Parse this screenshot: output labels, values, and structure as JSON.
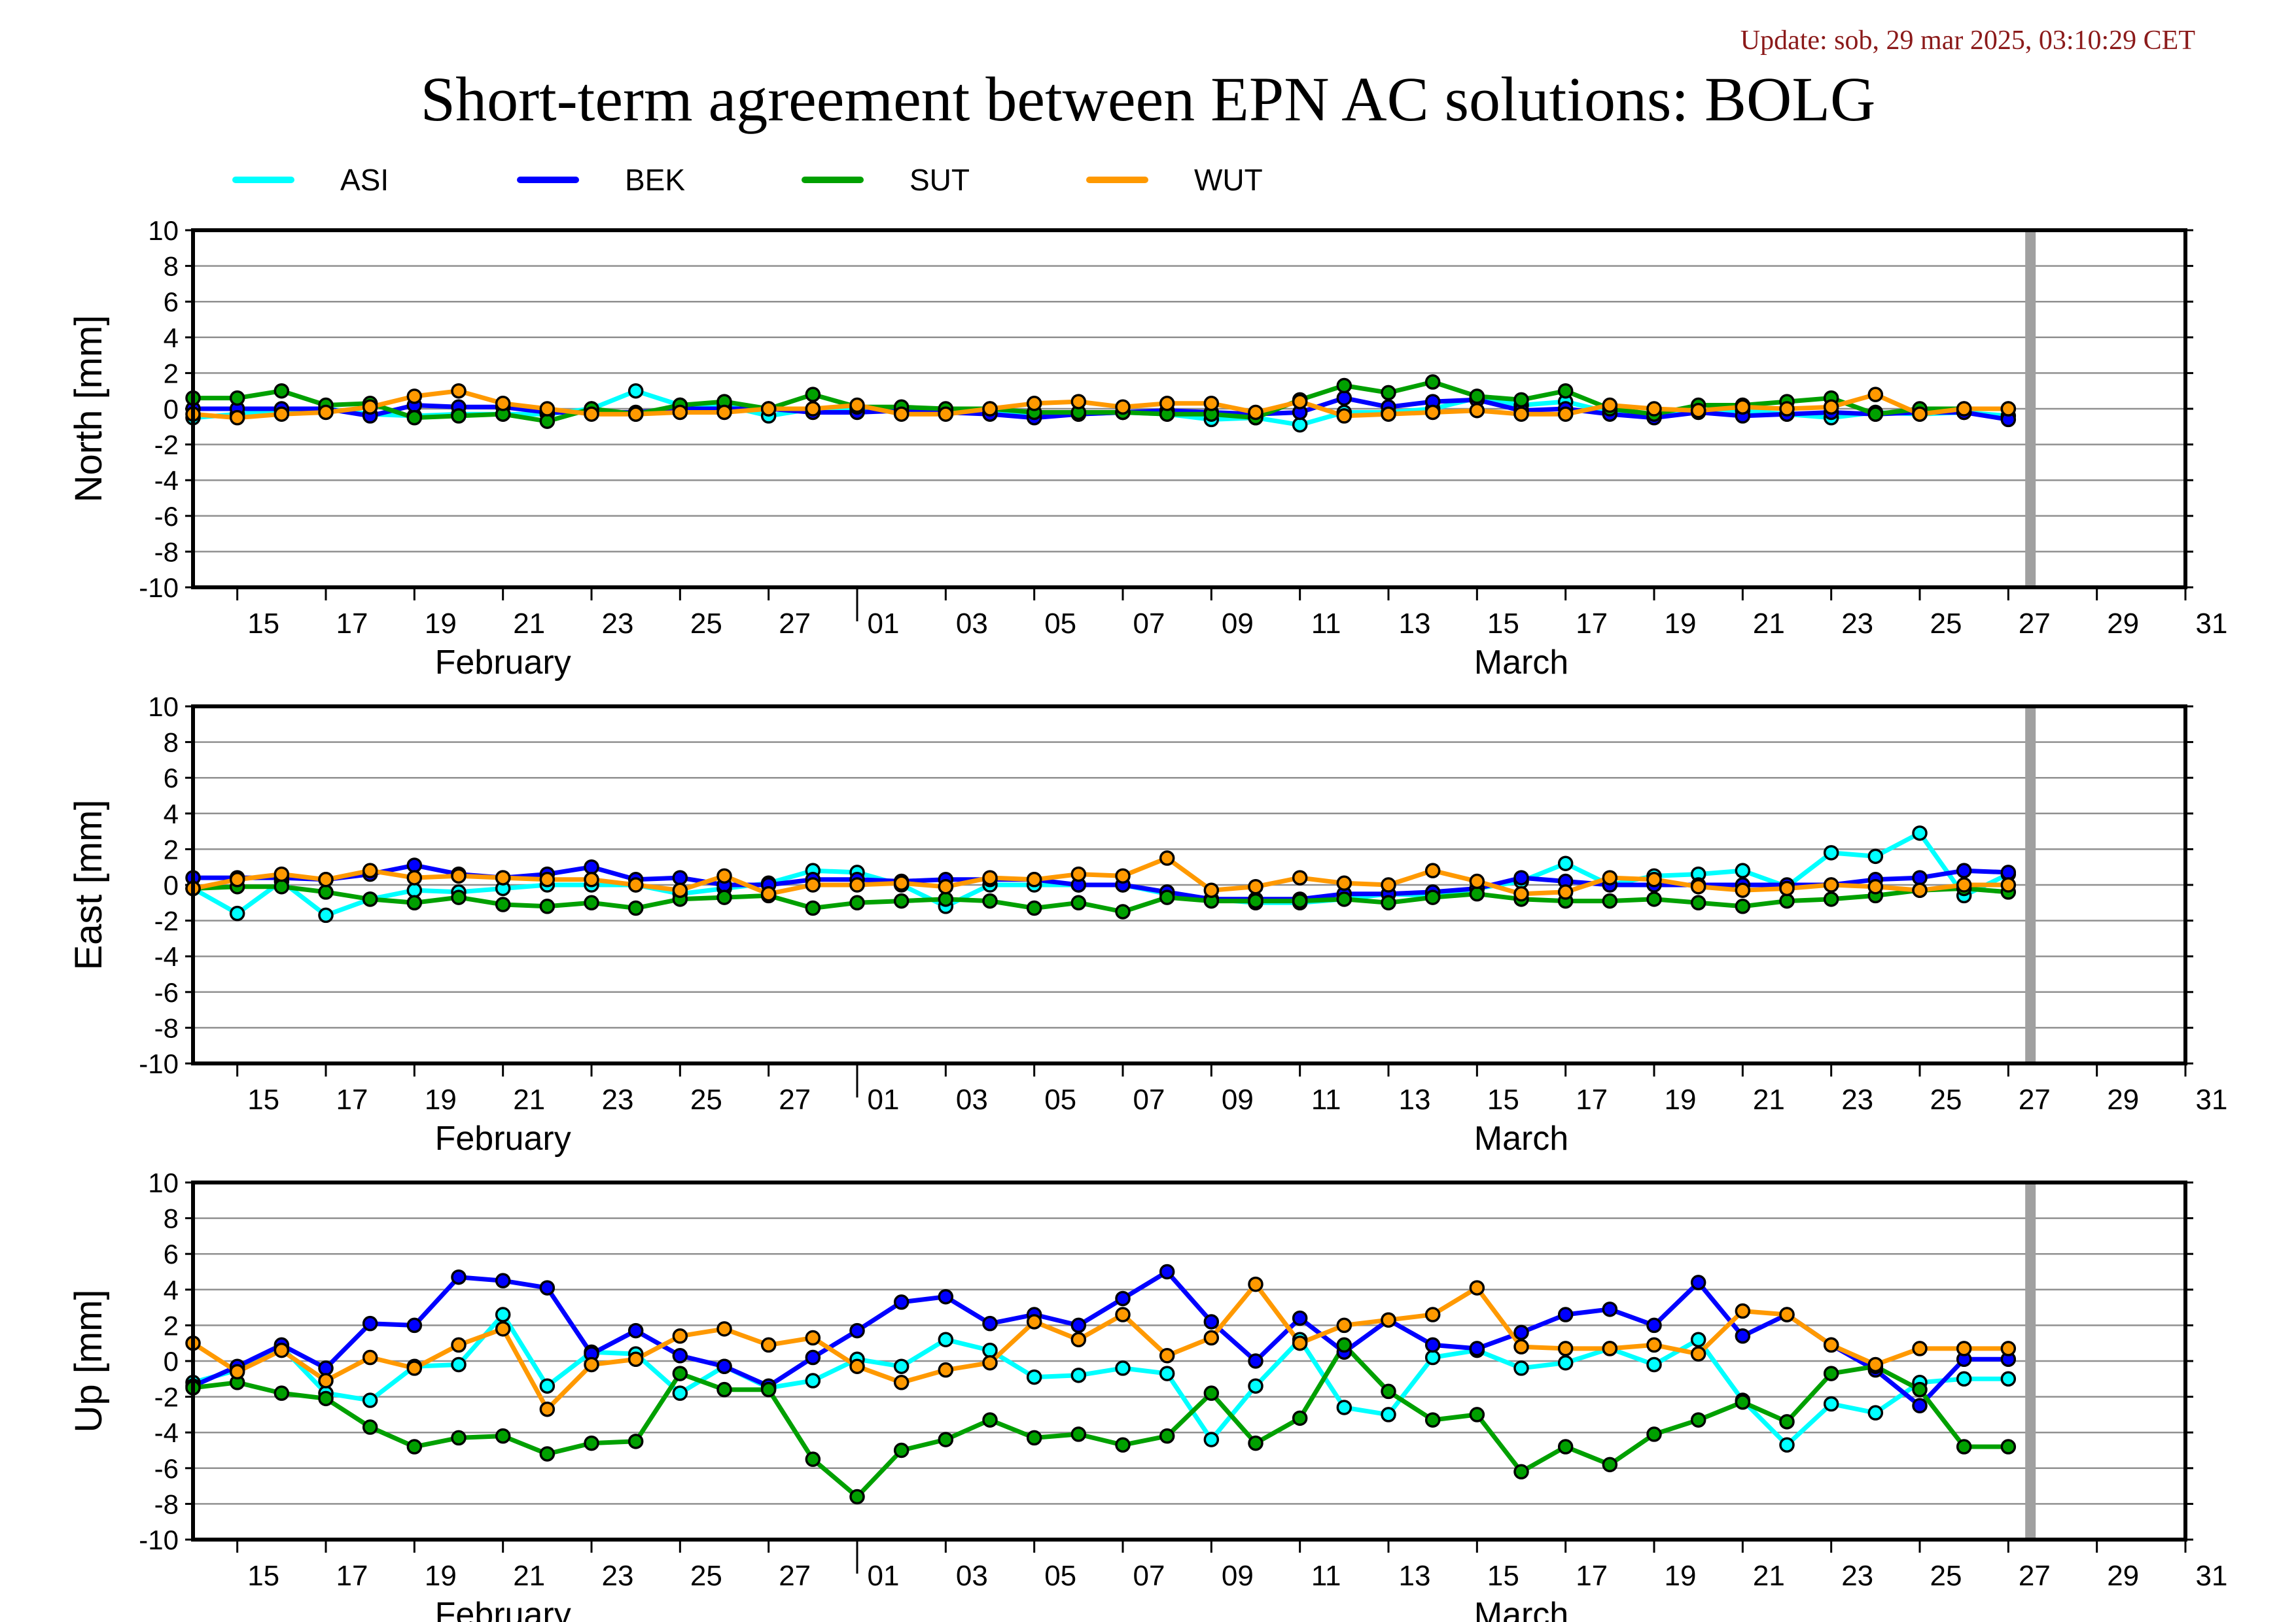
{
  "update_text": "Update: sob, 29 mar 2025, 03:10:29 CET",
  "title": "Short-term agreement between EPN AC solutions: BOLG",
  "colors": {
    "ASI": "#00ffff",
    "BEK": "#0000ff",
    "SUT": "#00a000",
    "WUT": "#ff9900",
    "data_end_marker": "#a0a0a0"
  },
  "legend": [
    {
      "name": "ASI",
      "color": "#00ffff"
    },
    {
      "name": "BEK",
      "color": "#0000ff"
    },
    {
      "name": "SUT",
      "color": "#00a000"
    },
    {
      "name": "WUT",
      "color": "#ff9900"
    }
  ],
  "chart_data": [
    {
      "type": "line",
      "ylabel": "North [mm]",
      "ylim": [
        -10,
        10
      ],
      "yticks": [
        10,
        8,
        6,
        4,
        2,
        0,
        -2,
        -4,
        -6,
        -8,
        -10
      ],
      "xlim": [
        "2025-02-14",
        "2025-03-31"
      ],
      "xtick_labels": [
        "15",
        "17",
        "19",
        "21",
        "23",
        "25",
        "27",
        "01",
        "03",
        "05",
        "07",
        "09",
        "11",
        "13",
        "15",
        "17",
        "19",
        "21",
        "23",
        "25",
        "27",
        "29",
        "31"
      ],
      "month_labels": [
        "February",
        "March"
      ],
      "data_end": "2025-03-27.5",
      "grid": true,
      "x": [
        "2025-02-14",
        "2025-02-15",
        "2025-02-16",
        "2025-02-17",
        "2025-02-18",
        "2025-02-19",
        "2025-02-20",
        "2025-02-21",
        "2025-02-22",
        "2025-02-23",
        "2025-02-24",
        "2025-02-25",
        "2025-02-26",
        "2025-02-27",
        "2025-02-28",
        "2025-03-01",
        "2025-03-02",
        "2025-03-03",
        "2025-03-04",
        "2025-03-05",
        "2025-03-06",
        "2025-03-07",
        "2025-03-08",
        "2025-03-09",
        "2025-03-10",
        "2025-03-11",
        "2025-03-12",
        "2025-03-13",
        "2025-03-14",
        "2025-03-15",
        "2025-03-16",
        "2025-03-17",
        "2025-03-18",
        "2025-03-19",
        "2025-03-20",
        "2025-03-21",
        "2025-03-22",
        "2025-03-23",
        "2025-03-24",
        "2025-03-25",
        "2025-03-26",
        "2025-03-27"
      ],
      "series": [
        {
          "name": "ASI",
          "values": [
            -0.5,
            -0.3,
            -0.1,
            0.0,
            -0.3,
            -0.4,
            -0.3,
            -0.3,
            -0.3,
            0.0,
            1.0,
            0.2,
            0.2,
            -0.4,
            0.0,
            0.0,
            -0.2,
            -0.1,
            -0.2,
            -0.3,
            -0.3,
            -0.2,
            -0.3,
            -0.6,
            -0.5,
            -0.9,
            -0.2,
            -0.2,
            0.0,
            0.6,
            0.2,
            0.4,
            -0.2,
            -0.3,
            -0.1,
            -0.1,
            -0.3,
            -0.5,
            -0.2,
            -0.3,
            -0.2,
            -0.4
          ]
        },
        {
          "name": "BEK",
          "values": [
            0.0,
            0.0,
            0.0,
            0.0,
            -0.4,
            0.2,
            0.1,
            0.1,
            -0.2,
            -0.2,
            -0.2,
            0.0,
            0.0,
            0.0,
            -0.2,
            -0.2,
            -0.1,
            -0.2,
            -0.3,
            -0.5,
            -0.3,
            -0.2,
            -0.1,
            -0.2,
            -0.3,
            -0.2,
            0.6,
            0.1,
            0.4,
            0.5,
            -0.1,
            0.0,
            -0.3,
            -0.5,
            -0.2,
            -0.4,
            -0.3,
            -0.2,
            -0.3,
            -0.2,
            -0.2,
            -0.6
          ]
        },
        {
          "name": "SUT",
          "values": [
            0.6,
            0.6,
            1.0,
            0.2,
            0.3,
            -0.5,
            -0.4,
            -0.3,
            -0.7,
            0.0,
            -0.3,
            0.2,
            0.4,
            0.0,
            0.8,
            0.1,
            0.1,
            0.0,
            0.0,
            -0.2,
            -0.2,
            -0.2,
            -0.3,
            -0.3,
            -0.5,
            0.5,
            1.3,
            0.9,
            1.5,
            0.7,
            0.5,
            1.0,
            0.0,
            -0.3,
            0.2,
            0.2,
            0.4,
            0.6,
            -0.3,
            0.0,
            0.0,
            0.0
          ]
        },
        {
          "name": "WUT",
          "values": [
            -0.3,
            -0.5,
            -0.3,
            -0.2,
            0.1,
            0.7,
            1.0,
            0.3,
            0.0,
            -0.3,
            -0.3,
            -0.2,
            -0.2,
            0.0,
            0.0,
            0.2,
            -0.3,
            -0.3,
            0.0,
            0.3,
            0.4,
            0.1,
            0.3,
            0.3,
            -0.2,
            0.4,
            -0.4,
            -0.3,
            -0.2,
            -0.1,
            -0.3,
            -0.3,
            0.2,
            0.0,
            -0.1,
            0.1,
            0.0,
            0.1,
            0.8,
            -0.3,
            0.0,
            0.0
          ]
        }
      ]
    },
    {
      "type": "line",
      "ylabel": "East [mm]",
      "ylim": [
        -10,
        10
      ],
      "yticks": [
        10,
        8,
        6,
        4,
        2,
        0,
        -2,
        -4,
        -6,
        -8,
        -10
      ],
      "xlim": [
        "2025-02-14",
        "2025-03-31"
      ],
      "xtick_labels": [
        "15",
        "17",
        "19",
        "21",
        "23",
        "25",
        "27",
        "01",
        "03",
        "05",
        "07",
        "09",
        "11",
        "13",
        "15",
        "17",
        "19",
        "21",
        "23",
        "25",
        "27",
        "29",
        "31"
      ],
      "month_labels": [
        "February",
        "March"
      ],
      "data_end": "2025-03-27.5",
      "grid": true,
      "x": [
        "2025-02-14",
        "2025-02-15",
        "2025-02-16",
        "2025-02-17",
        "2025-02-18",
        "2025-02-19",
        "2025-02-20",
        "2025-02-21",
        "2025-02-22",
        "2025-02-23",
        "2025-02-24",
        "2025-02-25",
        "2025-02-26",
        "2025-02-27",
        "2025-02-28",
        "2025-03-01",
        "2025-03-02",
        "2025-03-03",
        "2025-03-04",
        "2025-03-05",
        "2025-03-06",
        "2025-03-07",
        "2025-03-08",
        "2025-03-09",
        "2025-03-10",
        "2025-03-11",
        "2025-03-12",
        "2025-03-13",
        "2025-03-14",
        "2025-03-15",
        "2025-03-16",
        "2025-03-17",
        "2025-03-18",
        "2025-03-19",
        "2025-03-20",
        "2025-03-21",
        "2025-03-22",
        "2025-03-23",
        "2025-03-24",
        "2025-03-25",
        "2025-03-26",
        "2025-03-27"
      ],
      "series": [
        {
          "name": "ASI",
          "values": [
            -0.2,
            -1.6,
            0.2,
            -1.7,
            -0.8,
            -0.3,
            -0.4,
            -0.2,
            0.0,
            0.0,
            0.0,
            -0.5,
            -0.2,
            0.1,
            0.8,
            0.7,
            0.0,
            -1.2,
            0.0,
            0.0,
            0.0,
            0.0,
            -0.5,
            -0.8,
            -1.0,
            -1.0,
            -0.8,
            -0.5,
            -0.6,
            -0.2,
            0.2,
            1.2,
            0.0,
            0.5,
            0.6,
            0.8,
            -0.1,
            1.8,
            1.6,
            2.9,
            -0.6,
            0.6
          ]
        },
        {
          "name": "BEK",
          "values": [
            0.4,
            0.4,
            0.4,
            0.3,
            0.6,
            1.1,
            0.6,
            0.4,
            0.6,
            1.0,
            0.3,
            0.4,
            0.0,
            0.0,
            0.3,
            0.3,
            0.2,
            0.3,
            0.3,
            0.3,
            0.0,
            0.0,
            -0.4,
            -0.8,
            -0.8,
            -0.8,
            -0.5,
            -0.5,
            -0.4,
            -0.2,
            0.4,
            0.2,
            0.0,
            0.0,
            0.0,
            0.0,
            0.0,
            0.0,
            0.3,
            0.4,
            0.8,
            0.7
          ]
        },
        {
          "name": "SUT",
          "values": [
            -0.2,
            -0.1,
            -0.1,
            -0.4,
            -0.8,
            -1.0,
            -0.7,
            -1.1,
            -1.2,
            -1.0,
            -1.3,
            -0.8,
            -0.7,
            -0.6,
            -1.3,
            -1.0,
            -0.9,
            -0.8,
            -0.9,
            -1.3,
            -1.0,
            -1.5,
            -0.7,
            -0.9,
            -0.9,
            -0.9,
            -0.8,
            -1.0,
            -0.7,
            -0.5,
            -0.8,
            -0.9,
            -0.9,
            -0.8,
            -1.0,
            -1.2,
            -0.9,
            -0.8,
            -0.6,
            -0.3,
            -0.2,
            -0.4
          ]
        },
        {
          "name": "WUT",
          "values": [
            -0.2,
            0.3,
            0.6,
            0.3,
            0.8,
            0.4,
            0.5,
            0.4,
            0.3,
            0.3,
            0.0,
            -0.3,
            0.5,
            -0.5,
            0.0,
            0.0,
            0.1,
            -0.1,
            0.4,
            0.3,
            0.6,
            0.5,
            1.5,
            -0.3,
            -0.1,
            0.4,
            0.1,
            0.0,
            0.8,
            0.2,
            -0.5,
            -0.4,
            0.4,
            0.3,
            -0.1,
            -0.3,
            -0.2,
            0.0,
            -0.1,
            -0.3,
            0.0,
            0.0
          ]
        }
      ]
    },
    {
      "type": "line",
      "ylabel": "Up [mm]",
      "ylim": [
        -10,
        10
      ],
      "yticks": [
        10,
        8,
        6,
        4,
        2,
        0,
        -2,
        -4,
        -6,
        -8,
        -10
      ],
      "xlim": [
        "2025-02-14",
        "2025-03-31"
      ],
      "xtick_labels": [
        "15",
        "17",
        "19",
        "21",
        "23",
        "25",
        "27",
        "01",
        "03",
        "05",
        "07",
        "09",
        "11",
        "13",
        "15",
        "17",
        "19",
        "21",
        "23",
        "25",
        "27",
        "29",
        "31"
      ],
      "month_labels": [
        "February",
        "March"
      ],
      "data_end": "2025-03-27.5",
      "grid": true,
      "x": [
        "2025-02-14",
        "2025-02-15",
        "2025-02-16",
        "2025-02-17",
        "2025-02-18",
        "2025-02-19",
        "2025-02-20",
        "2025-02-21",
        "2025-02-22",
        "2025-02-23",
        "2025-02-24",
        "2025-02-25",
        "2025-02-26",
        "2025-02-27",
        "2025-02-28",
        "2025-03-01",
        "2025-03-02",
        "2025-03-03",
        "2025-03-04",
        "2025-03-05",
        "2025-03-06",
        "2025-03-07",
        "2025-03-08",
        "2025-03-09",
        "2025-03-10",
        "2025-03-11",
        "2025-03-12",
        "2025-03-13",
        "2025-03-14",
        "2025-03-15",
        "2025-03-16",
        "2025-03-17",
        "2025-03-18",
        "2025-03-19",
        "2025-03-20",
        "2025-03-21",
        "2025-03-22",
        "2025-03-23",
        "2025-03-24",
        "2025-03-25",
        "2025-03-26",
        "2025-03-27"
      ],
      "series": [
        {
          "name": "ASI",
          "values": [
            -1.2,
            -0.5,
            0.8,
            -1.8,
            -2.2,
            -0.3,
            -0.2,
            2.6,
            -1.4,
            0.5,
            0.4,
            -1.8,
            -0.3,
            -1.5,
            -1.1,
            0.1,
            -0.3,
            1.2,
            0.6,
            -0.9,
            -0.8,
            -0.4,
            -0.7,
            -4.4,
            -1.4,
            1.2,
            -2.6,
            -3.0,
            0.2,
            0.6,
            -0.4,
            -0.1,
            0.7,
            -0.2,
            1.2,
            -2.2,
            -4.7,
            -2.4,
            -2.9,
            -1.2,
            -1.0,
            -1.0
          ]
        },
        {
          "name": "BEK",
          "values": [
            -1.4,
            -0.3,
            0.9,
            -0.4,
            2.1,
            2.0,
            4.7,
            4.5,
            4.1,
            0.4,
            1.7,
            0.3,
            -0.3,
            -1.4,
            0.2,
            1.7,
            3.3,
            3.6,
            2.1,
            2.6,
            2.0,
            3.5,
            5.0,
            2.2,
            0.0,
            2.4,
            0.5,
            2.3,
            0.9,
            0.7,
            1.6,
            2.6,
            2.9,
            2.0,
            4.4,
            1.4,
            2.6,
            0.9,
            -0.5,
            -2.5,
            0.1,
            0.1
          ]
        },
        {
          "name": "SUT",
          "values": [
            -1.5,
            -1.2,
            -1.8,
            -2.1,
            -3.7,
            -4.8,
            -4.3,
            -4.2,
            -5.2,
            -4.6,
            -4.5,
            -0.7,
            -1.6,
            -1.6,
            -5.5,
            -7.6,
            -5.0,
            -4.4,
            -3.3,
            -4.3,
            -4.1,
            -4.7,
            -4.2,
            -1.8,
            -4.6,
            -3.2,
            0.9,
            -1.7,
            -3.3,
            -3.0,
            -6.2,
            -4.8,
            -5.8,
            -4.1,
            -3.3,
            -2.3,
            -3.4,
            -0.7,
            -0.3,
            -1.6,
            -4.8,
            -4.8
          ]
        },
        {
          "name": "WUT",
          "values": [
            1.0,
            -0.6,
            0.6,
            -1.1,
            0.2,
            -0.4,
            0.9,
            1.8,
            -2.7,
            -0.2,
            0.1,
            1.4,
            1.8,
            0.9,
            1.3,
            -0.3,
            -1.2,
            -0.5,
            -0.1,
            2.2,
            1.2,
            2.6,
            0.3,
            1.3,
            4.3,
            1.0,
            2.0,
            2.3,
            2.6,
            4.1,
            0.8,
            0.7,
            0.7,
            0.9,
            0.4,
            2.8,
            2.6,
            0.9,
            -0.2,
            0.7,
            0.7,
            0.7
          ]
        }
      ]
    }
  ]
}
